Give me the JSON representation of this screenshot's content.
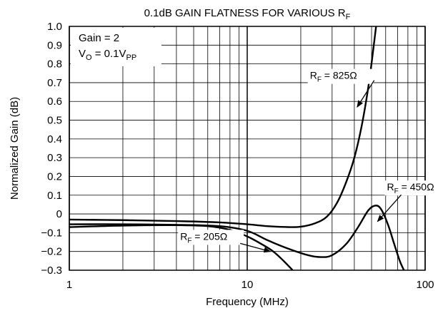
{
  "chart_data": {
    "type": "line",
    "title": {
      "main": "0.1dB GAIN FLATNESS FOR VARIOUS R",
      "sub": "F"
    },
    "xlabel": "Frequency (MHz)",
    "ylabel": "Normalized Gain (dB)",
    "x_scale": "log",
    "xlim": [
      1,
      100
    ],
    "ylim": [
      -0.3,
      1.0
    ],
    "grid": true,
    "x_ticks": [
      {
        "value": 1,
        "label": "1"
      },
      {
        "value": 10,
        "label": "10"
      },
      {
        "value": 100,
        "label": "100"
      }
    ],
    "y_ticks": [
      {
        "value": 1.0,
        "label": "1.0"
      },
      {
        "value": 0.9,
        "label": "0.9"
      },
      {
        "value": 0.8,
        "label": "0.8"
      },
      {
        "value": 0.7,
        "label": "0.7"
      },
      {
        "value": 0.6,
        "label": "0.6"
      },
      {
        "value": 0.5,
        "label": "0.5"
      },
      {
        "value": 0.4,
        "label": "0.4"
      },
      {
        "value": 0.3,
        "label": "0.3"
      },
      {
        "value": 0.2,
        "label": "0.2"
      },
      {
        "value": 0.1,
        "label": "0.1"
      },
      {
        "value": 0.0,
        "label": "0"
      },
      {
        "value": -0.1,
        "label": "−0.1"
      },
      {
        "value": -0.2,
        "label": "−0.2"
      },
      {
        "value": -0.3,
        "label": "−0.3"
      }
    ],
    "conditions": {
      "gain": "Gain = 2",
      "vo_prefix": "V",
      "vo_sub1": "O",
      "vo_mid": " = 0.1V",
      "vo_sub2": "PP"
    },
    "series": [
      {
        "name": "R_F = 825Ω",
        "values": [
          [
            1,
            -0.03
          ],
          [
            2,
            -0.033
          ],
          [
            4,
            -0.038
          ],
          [
            7,
            -0.045
          ],
          [
            10,
            -0.055
          ],
          [
            13,
            -0.065
          ],
          [
            17,
            -0.07
          ],
          [
            20,
            -0.068
          ],
          [
            24,
            -0.05
          ],
          [
            28,
            -0.015
          ],
          [
            32,
            0.06
          ],
          [
            36,
            0.17
          ],
          [
            40,
            0.3
          ],
          [
            44,
            0.47
          ],
          [
            48,
            0.68
          ],
          [
            51,
            0.87
          ],
          [
            53,
            1.0
          ]
        ]
      },
      {
        "name": "R_F = 450Ω",
        "values": [
          [
            1,
            -0.055
          ],
          [
            2,
            -0.055
          ],
          [
            4,
            -0.058
          ],
          [
            7,
            -0.065
          ],
          [
            10,
            -0.09
          ],
          [
            13,
            -0.14
          ],
          [
            17,
            -0.185
          ],
          [
            22,
            -0.22
          ],
          [
            26,
            -0.23
          ],
          [
            30,
            -0.22
          ],
          [
            36,
            -0.16
          ],
          [
            42,
            -0.07
          ],
          [
            48,
            0.02
          ],
          [
            53,
            0.045
          ],
          [
            57,
            0.02
          ],
          [
            62,
            -0.06
          ],
          [
            67,
            -0.16
          ],
          [
            72,
            -0.25
          ],
          [
            76,
            -0.3
          ]
        ]
      },
      {
        "name": "R_F = 205Ω",
        "values": [
          [
            1,
            -0.07
          ],
          [
            2,
            -0.062
          ],
          [
            4,
            -0.06
          ],
          [
            6,
            -0.065
          ],
          [
            8,
            -0.085
          ],
          [
            10,
            -0.12
          ],
          [
            12,
            -0.16
          ],
          [
            14,
            -0.2
          ],
          [
            16,
            -0.25
          ],
          [
            18,
            -0.3
          ]
        ]
      }
    ],
    "annotations": [
      {
        "prefix": "R",
        "sub": "F",
        "text": " = 825Ω",
        "series": "R_F = 825Ω",
        "label_at": [
          22.5,
          0.72
        ],
        "arrow_to": [
          41.5,
          0.57
        ]
      },
      {
        "prefix": "R",
        "sub": "F",
        "text": " = 450Ω",
        "series": "R_F = 450Ω",
        "label_at": [
          61,
          0.125
        ],
        "arrow_to": [
          54,
          -0.04
        ]
      },
      {
        "prefix": "R",
        "sub": "F",
        "text": " = 205Ω",
        "series": "R_F = 205Ω",
        "label_at": [
          4.2,
          -0.138
        ],
        "arrow_to": [
          13.5,
          -0.2
        ]
      }
    ]
  }
}
